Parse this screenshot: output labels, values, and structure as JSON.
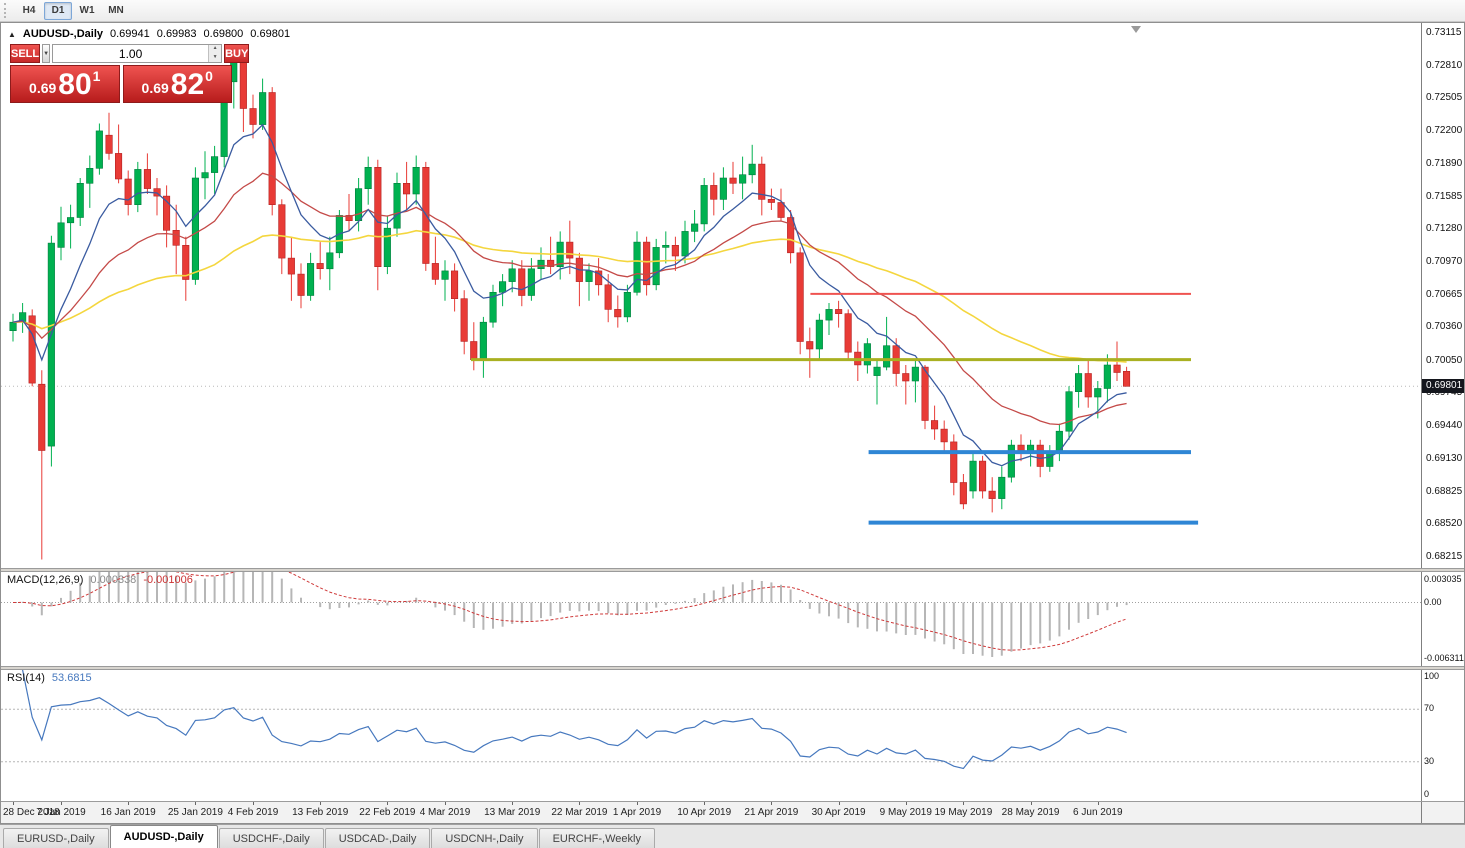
{
  "toolbar": {
    "timeframes": [
      "H4",
      "D1",
      "W1",
      "MN"
    ],
    "active": "D1"
  },
  "chart_header": {
    "collapse": "▲",
    "title": "AUDUSD-,Daily",
    "open": "0.69941",
    "high": "0.69983",
    "low": "0.69800",
    "close": "0.69801"
  },
  "trade_panel": {
    "sell_label": "SELL",
    "buy_label": "BUY",
    "volume": "1.00",
    "sell_price": {
      "prefix": "0.69",
      "main": "80",
      "sup": "1"
    },
    "buy_price": {
      "prefix": "0.69",
      "main": "82",
      "sup": "0"
    }
  },
  "price_axis": {
    "labels": [
      "0.73115",
      "0.72810",
      "0.72505",
      "0.72200",
      "0.71890",
      "0.71585",
      "0.71280",
      "0.70970",
      "0.70665",
      "0.70360",
      "0.70050",
      "0.69745",
      "0.69440",
      "0.69130",
      "0.68825",
      "0.68520",
      "0.68215"
    ],
    "current_price": "0.69801"
  },
  "time_axis": {
    "labels": [
      [
        "28 Dec 2018",
        0
      ],
      [
        "7 Jan 2019",
        5
      ],
      [
        "16 Jan 2019",
        12
      ],
      [
        "25 Jan 2019",
        19
      ],
      [
        "4 Feb 2019",
        25
      ],
      [
        "13 Feb 2019",
        32
      ],
      [
        "22 Feb 2019",
        39
      ],
      [
        "4 Mar 2019",
        45
      ],
      [
        "13 Mar 2019",
        52
      ],
      [
        "22 Mar 2019",
        59
      ],
      [
        "1 Apr 2019",
        65
      ],
      [
        "10 Apr 2019",
        72
      ],
      [
        "21 Apr 2019",
        79
      ],
      [
        "30 Apr 2019",
        86
      ],
      [
        "9 May 2019",
        93
      ],
      [
        "19 May 2019",
        99
      ],
      [
        "28 May 2019",
        106
      ],
      [
        "6 Jun 2019",
        113
      ]
    ]
  },
  "macd_panel": {
    "label": "MACD(12,26,9)",
    "main_value": "0.000338",
    "signal_value": "-0.001006",
    "axis_labels": [
      "0.003035",
      "0.00",
      "-0.006311"
    ]
  },
  "rsi_panel": {
    "label": "RSI(14)",
    "value": "53.6815",
    "axis_labels": [
      "100",
      "70",
      "30",
      "0"
    ]
  },
  "tabs": [
    {
      "label": "EURUSD-,Daily",
      "active": false
    },
    {
      "label": "AUDUSD-,Daily",
      "active": true
    },
    {
      "label": "USDCHF-,Daily",
      "active": false
    },
    {
      "label": "USDCAD-,Daily",
      "active": false
    },
    {
      "label": "USDCNH-,Daily",
      "active": false
    },
    {
      "label": "EURCHF-,Weekly",
      "active": false
    }
  ],
  "colors": {
    "bull": "#00b150",
    "bear": "#e83b36",
    "ma_fast": "#3a5ba0",
    "ma_mid": "#c44a48",
    "ma_slow": "#f4d63e",
    "macd_hist": "#b6b6b6",
    "macd_signal": "#cf3a3a",
    "rsi_line": "#4678be",
    "hline_red": "#ef5350",
    "hline_olive": "#a9b021",
    "hline_blue": "#2f86d5",
    "price_tag_bg": "#14161d"
  },
  "chart_data": {
    "type": "candlestick",
    "symbol": "AUDUSD",
    "timeframe": "Daily",
    "ylim": [
      0.681,
      0.732
    ],
    "x_start": 12,
    "x_step": 9.6,
    "body_width": 6.5,
    "candles": [
      [
        0.7032,
        0.7048,
        0.7022,
        0.704
      ],
      [
        0.704,
        0.7058,
        0.703,
        0.7049
      ],
      [
        0.7046,
        0.7052,
        0.698,
        0.6983
      ],
      [
        0.6982,
        0.6995,
        0.6818,
        0.692
      ],
      [
        0.6924,
        0.7121,
        0.6905,
        0.7114
      ],
      [
        0.711,
        0.7148,
        0.7098,
        0.7133
      ],
      [
        0.7133,
        0.715,
        0.7109,
        0.7138
      ],
      [
        0.7138,
        0.7175,
        0.713,
        0.717
      ],
      [
        0.717,
        0.7196,
        0.7147,
        0.7184
      ],
      [
        0.7184,
        0.7226,
        0.7178,
        0.7219
      ],
      [
        0.7215,
        0.7236,
        0.7192,
        0.7198
      ],
      [
        0.7198,
        0.7225,
        0.717,
        0.7174
      ],
      [
        0.7174,
        0.7182,
        0.714,
        0.715
      ],
      [
        0.715,
        0.719,
        0.7143,
        0.7183
      ],
      [
        0.7183,
        0.7198,
        0.716,
        0.7165
      ],
      [
        0.7165,
        0.7175,
        0.714,
        0.7158
      ],
      [
        0.7158,
        0.7168,
        0.711,
        0.7126
      ],
      [
        0.7126,
        0.715,
        0.7085,
        0.7112
      ],
      [
        0.7112,
        0.712,
        0.706,
        0.708
      ],
      [
        0.708,
        0.7185,
        0.7075,
        0.7175
      ],
      [
        0.7175,
        0.72,
        0.7155,
        0.718
      ],
      [
        0.718,
        0.7205,
        0.716,
        0.7195
      ],
      [
        0.7195,
        0.7275,
        0.7185,
        0.7265
      ],
      [
        0.7265,
        0.73,
        0.724,
        0.7288
      ],
      [
        0.7288,
        0.7296,
        0.7218,
        0.724
      ],
      [
        0.724,
        0.7253,
        0.7212,
        0.7225
      ],
      [
        0.7225,
        0.7268,
        0.722,
        0.7255
      ],
      [
        0.7255,
        0.726,
        0.714,
        0.715
      ],
      [
        0.715,
        0.7155,
        0.7085,
        0.71
      ],
      [
        0.71,
        0.712,
        0.706,
        0.7085
      ],
      [
        0.7085,
        0.7095,
        0.7053,
        0.7065
      ],
      [
        0.7065,
        0.7105,
        0.706,
        0.7095
      ],
      [
        0.7095,
        0.7115,
        0.708,
        0.709
      ],
      [
        0.709,
        0.712,
        0.707,
        0.7105
      ],
      [
        0.7105,
        0.7145,
        0.71,
        0.714
      ],
      [
        0.714,
        0.716,
        0.7125,
        0.7135
      ],
      [
        0.7135,
        0.7175,
        0.7125,
        0.7165
      ],
      [
        0.7165,
        0.7195,
        0.715,
        0.7185
      ],
      [
        0.7185,
        0.7192,
        0.707,
        0.7092
      ],
      [
        0.7092,
        0.714,
        0.7085,
        0.7128
      ],
      [
        0.7128,
        0.718,
        0.712,
        0.717
      ],
      [
        0.717,
        0.719,
        0.7145,
        0.716
      ],
      [
        0.716,
        0.7196,
        0.715,
        0.7185
      ],
      [
        0.7185,
        0.719,
        0.7088,
        0.7095
      ],
      [
        0.7095,
        0.712,
        0.7075,
        0.708
      ],
      [
        0.708,
        0.7098,
        0.706,
        0.7088
      ],
      [
        0.7088,
        0.7095,
        0.705,
        0.7062
      ],
      [
        0.7062,
        0.707,
        0.701,
        0.7022
      ],
      [
        0.7022,
        0.704,
        0.6995,
        0.7005
      ],
      [
        0.7005,
        0.7045,
        0.6988,
        0.704
      ],
      [
        0.704,
        0.7075,
        0.7035,
        0.7068
      ],
      [
        0.7068,
        0.7085,
        0.7055,
        0.7078
      ],
      [
        0.7078,
        0.7098,
        0.7068,
        0.709
      ],
      [
        0.709,
        0.7098,
        0.7055,
        0.7065
      ],
      [
        0.7065,
        0.71,
        0.706,
        0.709
      ],
      [
        0.709,
        0.711,
        0.708,
        0.7098
      ],
      [
        0.7098,
        0.712,
        0.7085,
        0.7092
      ],
      [
        0.7092,
        0.7125,
        0.708,
        0.7115
      ],
      [
        0.7115,
        0.7135,
        0.7085,
        0.71
      ],
      [
        0.71,
        0.7105,
        0.7055,
        0.7078
      ],
      [
        0.7078,
        0.7095,
        0.706,
        0.7088
      ],
      [
        0.7088,
        0.71,
        0.7065,
        0.7075
      ],
      [
        0.7075,
        0.7085,
        0.704,
        0.7052
      ],
      [
        0.7052,
        0.7065,
        0.7035,
        0.7045
      ],
      [
        0.7045,
        0.7075,
        0.704,
        0.7068
      ],
      [
        0.7068,
        0.7125,
        0.7065,
        0.7115
      ],
      [
        0.7115,
        0.712,
        0.7065,
        0.7075
      ],
      [
        0.7075,
        0.7118,
        0.707,
        0.711
      ],
      [
        0.711,
        0.7125,
        0.7095,
        0.7112
      ],
      [
        0.7112,
        0.712,
        0.7088,
        0.7102
      ],
      [
        0.7102,
        0.7135,
        0.7095,
        0.7125
      ],
      [
        0.7125,
        0.7145,
        0.7115,
        0.7132
      ],
      [
        0.7132,
        0.7175,
        0.7125,
        0.7168
      ],
      [
        0.7168,
        0.718,
        0.714,
        0.7155
      ],
      [
        0.7155,
        0.7185,
        0.7145,
        0.7175
      ],
      [
        0.7175,
        0.719,
        0.716,
        0.717
      ],
      [
        0.717,
        0.7195,
        0.7155,
        0.7178
      ],
      [
        0.7178,
        0.7206,
        0.717,
        0.7188
      ],
      [
        0.7188,
        0.7195,
        0.714,
        0.7155
      ],
      [
        0.7155,
        0.7165,
        0.7145,
        0.7152
      ],
      [
        0.7152,
        0.7165,
        0.7135,
        0.7138
      ],
      [
        0.7138,
        0.7145,
        0.7095,
        0.7105
      ],
      [
        0.7105,
        0.711,
        0.701,
        0.7022
      ],
      [
        0.7022,
        0.7035,
        0.6988,
        0.7015
      ],
      [
        0.7015,
        0.7048,
        0.7005,
        0.7042
      ],
      [
        0.7042,
        0.7058,
        0.7028,
        0.7052
      ],
      [
        0.7052,
        0.706,
        0.7035,
        0.7048
      ],
      [
        0.7048,
        0.7052,
        0.7005,
        0.7012
      ],
      [
        0.7012,
        0.7022,
        0.6985,
        0.7
      ],
      [
        0.7,
        0.7025,
        0.6992,
        0.702
      ],
      [
        0.699,
        0.7005,
        0.6963,
        0.6998
      ],
      [
        0.6998,
        0.7045,
        0.6995,
        0.7018
      ],
      [
        0.7018,
        0.7025,
        0.698,
        0.6992
      ],
      [
        0.6992,
        0.7,
        0.6963,
        0.6985
      ],
      [
        0.6985,
        0.7005,
        0.6965,
        0.6998
      ],
      [
        0.6998,
        0.7,
        0.694,
        0.6948
      ],
      [
        0.6948,
        0.6962,
        0.693,
        0.694
      ],
      [
        0.694,
        0.6948,
        0.6918,
        0.6928
      ],
      [
        0.6928,
        0.6935,
        0.6878,
        0.689
      ],
      [
        0.689,
        0.6898,
        0.6865,
        0.687
      ],
      [
        0.6882,
        0.692,
        0.6875,
        0.691
      ],
      [
        0.691,
        0.6915,
        0.6875,
        0.6882
      ],
      [
        0.6882,
        0.6895,
        0.6862,
        0.6875
      ],
      [
        0.6875,
        0.6905,
        0.6865,
        0.6895
      ],
      [
        0.6895,
        0.693,
        0.689,
        0.6925
      ],
      [
        0.6925,
        0.6935,
        0.691,
        0.6918
      ],
      [
        0.6918,
        0.693,
        0.6905,
        0.6925
      ],
      [
        0.6925,
        0.693,
        0.6895,
        0.6905
      ],
      [
        0.6905,
        0.6925,
        0.69,
        0.6918
      ],
      [
        0.6918,
        0.6945,
        0.691,
        0.6938
      ],
      [
        0.6938,
        0.698,
        0.693,
        0.6975
      ],
      [
        0.6975,
        0.7,
        0.696,
        0.6992
      ],
      [
        0.6992,
        0.7005,
        0.696,
        0.697
      ],
      [
        0.697,
        0.6985,
        0.695,
        0.6978
      ],
      [
        0.6978,
        0.701,
        0.6965,
        0.7
      ],
      [
        0.7,
        0.7022,
        0.6985,
        0.6993
      ],
      [
        0.69941,
        0.69983,
        0.698,
        0.69801
      ]
    ],
    "moving_averages": [
      {
        "name": "slow",
        "period": 55
      },
      {
        "name": "mid",
        "period": 21
      },
      {
        "name": "fast",
        "period": 8
      }
    ],
    "hlines": [
      {
        "name": "resistance-red",
        "price": 0.70665,
        "color_key": "hline_red",
        "width": 2,
        "x0": 0.57,
        "x1": 0.838
      },
      {
        "name": "resistance-olive",
        "price": 0.7005,
        "color_key": "hline_olive",
        "width": 3,
        "x0": 0.331,
        "x1": 0.838
      },
      {
        "name": "support-blue-upper",
        "price": 0.69185,
        "color_key": "hline_blue",
        "width": 4,
        "x0": 0.611,
        "x1": 0.838
      },
      {
        "name": "support-blue-lower",
        "price": 0.68525,
        "color_key": "hline_blue",
        "width": 4,
        "x0": 0.611,
        "x1": 0.843
      }
    ],
    "macd": {
      "fast": 12,
      "slow": 26,
      "signal_period": 9,
      "ylim": [
        -0.006311,
        0.003035
      ]
    },
    "rsi": {
      "period": 14,
      "levels": [
        70,
        30
      ]
    }
  }
}
